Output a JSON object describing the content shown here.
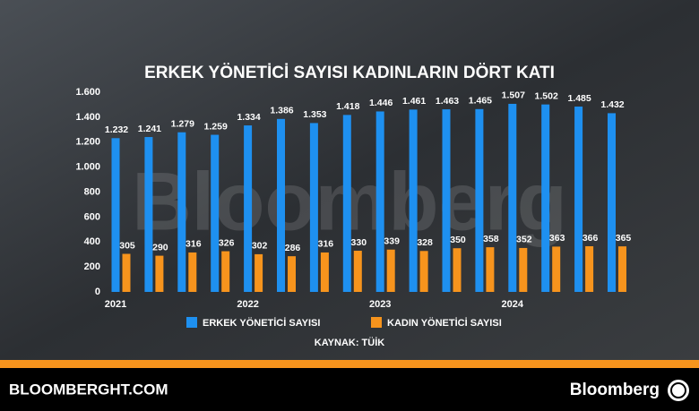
{
  "chart_data": {
    "type": "bar",
    "title": "ERKEK YÖNETİCİ SAYISI KADINLARIN DÖRT KATI",
    "categories": [
      "2021",
      null,
      null,
      null,
      "2022",
      null,
      null,
      null,
      "2023",
      null,
      null,
      null,
      "2024",
      null,
      null,
      null
    ],
    "series": [
      {
        "name": "ERKEK YÖNETİCİ SAYISI",
        "color": "#1e90f0",
        "values": [
          1232,
          1241,
          1279,
          1259,
          1334,
          1386,
          1353,
          1418,
          1446,
          1461,
          1463,
          1465,
          1507,
          1502,
          1485,
          1432
        ],
        "value_labels": [
          "1.232",
          "1.241",
          "1.279",
          "1.259",
          "1.334",
          "1.386",
          "1.353",
          "1.418",
          "1.446",
          "1.461",
          "1.463",
          "1.465",
          "1.507",
          "1.502",
          "1.485",
          "1.432"
        ]
      },
      {
        "name": "KADIN YÖNETİCİ SAYISI",
        "color": "#f7941d",
        "values": [
          305,
          290,
          316,
          326,
          302,
          286,
          316,
          330,
          339,
          328,
          350,
          358,
          352,
          363,
          366,
          365
        ]
      }
    ],
    "ylim": [
      0,
      1600
    ],
    "yticks": [
      0,
      200,
      400,
      600,
      800,
      {
        "value": 1000,
        "label": "1.000"
      },
      {
        "value": 1200,
        "label": "1.200"
      },
      {
        "value": 1400,
        "label": "1.400"
      },
      {
        "value": 1600,
        "label": "1.600"
      }
    ],
    "grid": false,
    "source": "KAYNAK: TÜİK"
  },
  "watermark": "Bloomberg",
  "footer": {
    "site": "BLOOMBERGHT.COM",
    "brand": "Bloomberg"
  }
}
